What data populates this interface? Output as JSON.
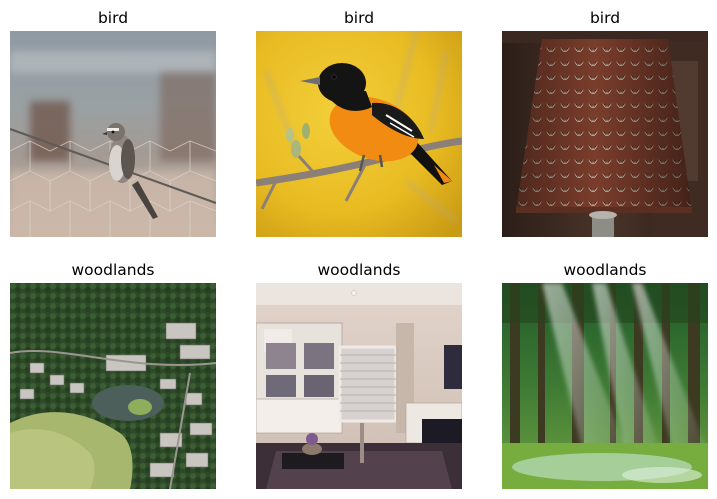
{
  "grid": {
    "items": [
      {
        "label": "bird",
        "subject": "small bird perched on chicken wire fence"
      },
      {
        "label": "bird",
        "subject": "baltimore oriole on a branch"
      },
      {
        "label": "bird",
        "subject": "feathered lampshade"
      },
      {
        "label": "woodlands",
        "subject": "aerial view of golf course neighborhood"
      },
      {
        "label": "woodlands",
        "subject": "interior living room"
      },
      {
        "label": "woodlands",
        "subject": "sunlit green forest"
      }
    ]
  },
  "colors": {
    "caption_text": "#000000",
    "background": "#ffffff"
  }
}
